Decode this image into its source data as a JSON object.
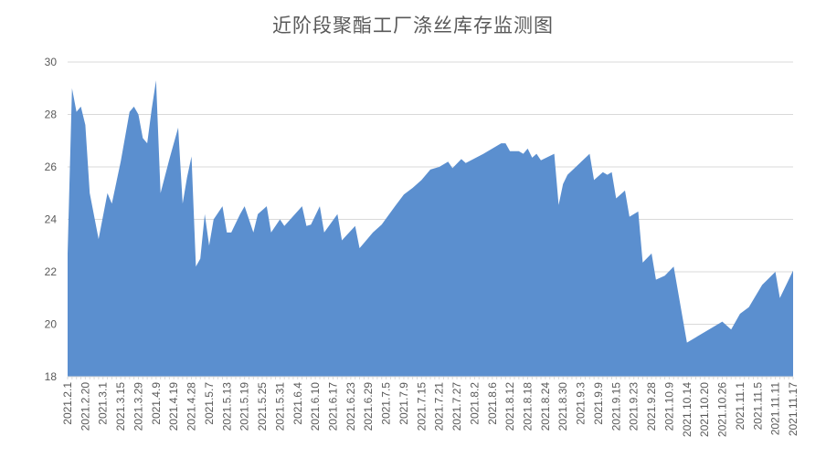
{
  "chart_data": {
    "type": "area",
    "title": "近阶段聚酯工厂涤丝库存监测图",
    "xlabel": "",
    "ylabel": "",
    "ylim": [
      18,
      30
    ],
    "yticks": [
      18,
      20,
      22,
      24,
      26,
      28,
      30
    ],
    "grid": true,
    "legend": "none",
    "color": "#5B8FCF",
    "tick_every": 4,
    "categories": [
      "2021.2.1",
      "2021.2.20",
      "2021.3.1",
      "2021.3.15",
      "2021.3.29",
      "2021.4.9",
      "2021.4.19",
      "2021.4.28",
      "2021.5.7",
      "2021.5.13",
      "2021.5.19",
      "2021.5.25",
      "2021.5.31",
      "2021.6.4",
      "2021.6.10",
      "2021.6.17",
      "2021.6.23",
      "2021.6.29",
      "2021.7.5",
      "2021.7.9",
      "2021.7.15",
      "2021.7.21",
      "2021.7.27",
      "2021.8.2",
      "2021.8.6",
      "2021.8.12",
      "2021.8.18",
      "2021.8.24",
      "2021.8.30",
      "2021.9.3",
      "2021.9.9",
      "2021.9.15",
      "2021.9.23",
      "2021.9.28",
      "2021.10.9",
      "2021.10.14",
      "2021.10.20",
      "2021.10.26",
      "2021.11.1",
      "2021.11.5",
      "2021.11.11",
      "2021.11.17"
    ],
    "points": [
      [
        0,
        22.7
      ],
      [
        1,
        29.0
      ],
      [
        2,
        28.1
      ],
      [
        3,
        28.3
      ],
      [
        4,
        27.6
      ],
      [
        5,
        25.0
      ],
      [
        7,
        23.25
      ],
      [
        9,
        25.0
      ],
      [
        10,
        24.6
      ],
      [
        12,
        26.2
      ],
      [
        14,
        28.1
      ],
      [
        15,
        28.3
      ],
      [
        16,
        28.0
      ],
      [
        17,
        27.1
      ],
      [
        18,
        26.9
      ],
      [
        19,
        28.2
      ],
      [
        20,
        29.3
      ],
      [
        21,
        25.0
      ],
      [
        23,
        26.3
      ],
      [
        25,
        27.5
      ],
      [
        26,
        24.6
      ],
      [
        27,
        25.6
      ],
      [
        28,
        26.4
      ],
      [
        29,
        22.2
      ],
      [
        30,
        22.5
      ],
      [
        31,
        24.2
      ],
      [
        32,
        23.0
      ],
      [
        33,
        24.0
      ],
      [
        35,
        24.5
      ],
      [
        36,
        23.5
      ],
      [
        37,
        23.5
      ],
      [
        39,
        24.2
      ],
      [
        40,
        24.5
      ],
      [
        42,
        23.5
      ],
      [
        43,
        24.2
      ],
      [
        45,
        24.5
      ],
      [
        46,
        23.5
      ],
      [
        48,
        24.0
      ],
      [
        49,
        23.75
      ],
      [
        53,
        24.5
      ],
      [
        54,
        23.75
      ],
      [
        55,
        23.8
      ],
      [
        57,
        24.5
      ],
      [
        58,
        23.5
      ],
      [
        61,
        24.2
      ],
      [
        62,
        23.2
      ],
      [
        65,
        23.75
      ],
      [
        66,
        22.9
      ],
      [
        67,
        23.1
      ],
      [
        69,
        23.5
      ],
      [
        71,
        23.8
      ],
      [
        74,
        24.5
      ],
      [
        76,
        24.95
      ],
      [
        78,
        25.2
      ],
      [
        80,
        25.5
      ],
      [
        82,
        25.9
      ],
      [
        84,
        26.0
      ],
      [
        86,
        26.2
      ],
      [
        87,
        25.95
      ],
      [
        89,
        26.3
      ],
      [
        90,
        26.15
      ],
      [
        94,
        26.5
      ],
      [
        98,
        26.9
      ],
      [
        99,
        26.9
      ],
      [
        100,
        26.6
      ],
      [
        102,
        26.6
      ],
      [
        103,
        26.5
      ],
      [
        104,
        26.7
      ],
      [
        105,
        26.35
      ],
      [
        106,
        26.5
      ],
      [
        107,
        26.25
      ],
      [
        110,
        26.5
      ],
      [
        111,
        24.55
      ],
      [
        112,
        25.35
      ],
      [
        113,
        25.7
      ],
      [
        118,
        26.5
      ],
      [
        119,
        25.5
      ],
      [
        121,
        25.8
      ],
      [
        122,
        25.7
      ],
      [
        123,
        25.8
      ],
      [
        124,
        24.8
      ],
      [
        126,
        25.1
      ],
      [
        127,
        24.1
      ],
      [
        129,
        24.3
      ],
      [
        130,
        22.35
      ],
      [
        132,
        22.7
      ],
      [
        133,
        21.7
      ],
      [
        135,
        21.85
      ],
      [
        137,
        22.2
      ],
      [
        140,
        19.3
      ],
      [
        148,
        20.1
      ],
      [
        150,
        19.8
      ],
      [
        152,
        20.4
      ],
      [
        154,
        20.65
      ],
      [
        157,
        21.5
      ],
      [
        160,
        22.0
      ],
      [
        161,
        21.0
      ],
      [
        164,
        22.05
      ]
    ]
  }
}
